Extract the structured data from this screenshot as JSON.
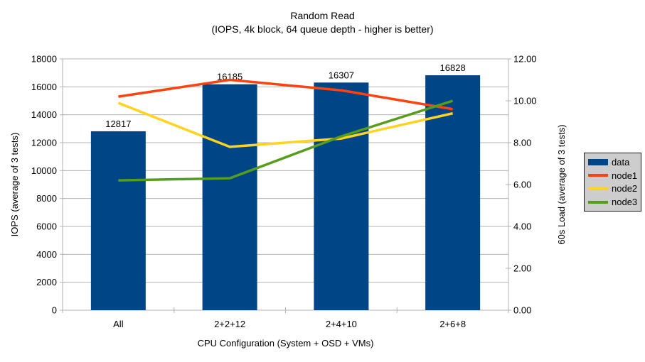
{
  "chart_data": {
    "type": "bar+line",
    "title": "Random Read",
    "subtitle": "(IOPS, 4k block, 64 queue depth - higher is better)",
    "categories": [
      "All",
      "2+2+12",
      "2+4+10",
      "2+6+8"
    ],
    "series": [
      {
        "name": "data",
        "type": "bar",
        "axis": "left",
        "color": "#004586",
        "values": [
          12817,
          16185,
          16307,
          16828
        ],
        "value_labels": [
          "12817",
          "16185",
          "16307",
          "16828"
        ]
      },
      {
        "name": "node1",
        "type": "line",
        "axis": "right",
        "color": "#ff420e",
        "values": [
          10.2,
          11.0,
          10.5,
          9.6
        ]
      },
      {
        "name": "node2",
        "type": "line",
        "axis": "right",
        "color": "#ffd320",
        "values": [
          9.9,
          7.8,
          8.2,
          9.4
        ]
      },
      {
        "name": "node3",
        "type": "line",
        "axis": "right",
        "color": "#579d1c",
        "values": [
          6.2,
          6.3,
          8.3,
          10.0
        ]
      }
    ],
    "x_axis": {
      "label": "CPU Configuration (System + OSD + VMs)"
    },
    "y_left": {
      "label": "IOPS (average of 3 tests)",
      "min": 0,
      "max": 18000,
      "step": 2000
    },
    "y_right": {
      "label": "60s Load (average of 3 tests)",
      "min": 0,
      "max": 12,
      "step": 2,
      "tick_decimals": 2
    },
    "grid": true,
    "legend_position": "right",
    "colors": {
      "grid": "#b3b3b3",
      "axis": "#b3b3b3",
      "text": "#000000",
      "legend_bg": "#cdcdcd"
    }
  }
}
